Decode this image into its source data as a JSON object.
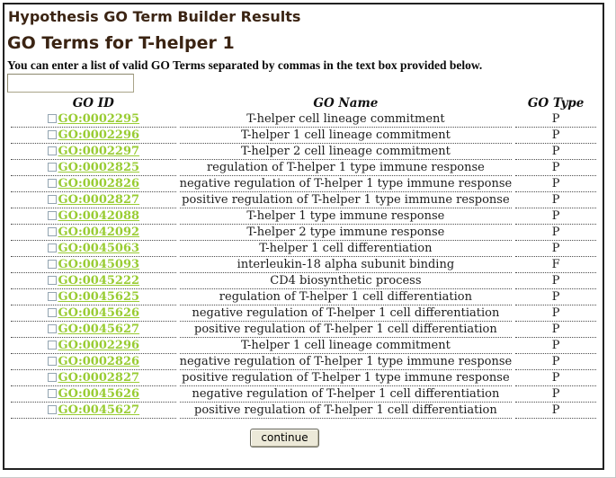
{
  "header": {
    "title": "Hypothesis GO Term Builder Results",
    "subtitle": "GO Terms for T-helper 1",
    "instruction": "You can enter a list of valid GO Terms separated by commas in the text box provided below."
  },
  "go_terms_input": {
    "value": "",
    "placeholder": ""
  },
  "table": {
    "headers": [
      "GO ID",
      "GO Name",
      "GO Type"
    ],
    "rows": [
      {
        "id": "GO:0002295",
        "name": "T-helper cell lineage commitment",
        "type": "P"
      },
      {
        "id": "GO:0002296",
        "name": "T-helper 1 cell lineage commitment",
        "type": "P"
      },
      {
        "id": "GO:0002297",
        "name": "T-helper 2 cell lineage commitment",
        "type": "P"
      },
      {
        "id": "GO:0002825",
        "name": "regulation of T-helper 1 type immune response",
        "type": "P"
      },
      {
        "id": "GO:0002826",
        "name": "negative regulation of T-helper 1 type immune response",
        "type": "P"
      },
      {
        "id": "GO:0002827",
        "name": "positive regulation of T-helper 1 type immune response",
        "type": "P"
      },
      {
        "id": "GO:0042088",
        "name": "T-helper 1 type immune response",
        "type": "P"
      },
      {
        "id": "GO:0042092",
        "name": "T-helper 2 type immune response",
        "type": "P"
      },
      {
        "id": "GO:0045063",
        "name": "T-helper 1 cell differentiation",
        "type": "P"
      },
      {
        "id": "GO:0045093",
        "name": "interleukin-18 alpha subunit binding",
        "type": "F"
      },
      {
        "id": "GO:0045222",
        "name": "CD4 biosynthetic process",
        "type": "P"
      },
      {
        "id": "GO:0045625",
        "name": "regulation of T-helper 1 cell differentiation",
        "type": "P"
      },
      {
        "id": "GO:0045626",
        "name": "negative regulation of T-helper 1 cell differentiation",
        "type": "P"
      },
      {
        "id": "GO:0045627",
        "name": "positive regulation of T-helper 1 cell differentiation",
        "type": "P"
      },
      {
        "id": "GO:0002296",
        "name": "T-helper 1 cell lineage commitment",
        "type": "P"
      },
      {
        "id": "GO:0002826",
        "name": "negative regulation of T-helper 1 type immune response",
        "type": "P"
      },
      {
        "id": "GO:0002827",
        "name": "positive regulation of T-helper 1 type immune response",
        "type": "P"
      },
      {
        "id": "GO:0045626",
        "name": "negative regulation of T-helper 1 cell differentiation",
        "type": "P"
      },
      {
        "id": "GO:0045627",
        "name": "positive regulation of T-helper 1 cell differentiation",
        "type": "P"
      }
    ]
  },
  "footer": {
    "continue_label": "continue"
  },
  "colors": {
    "heading_text": "#3b2413",
    "go_link": "#99cc33",
    "button_bg": "#ece9d8",
    "frame_border": "#222222",
    "row_divider": "#4d4d4d"
  }
}
